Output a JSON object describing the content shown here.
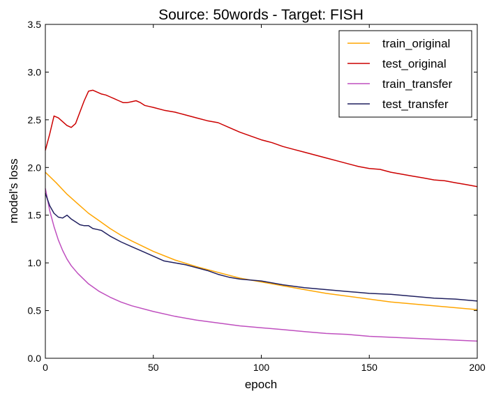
{
  "chart_data": {
    "type": "line",
    "title": "Source: 50words - Target: FISH",
    "xlabel": "epoch",
    "ylabel": "model's loss",
    "xlim": [
      0,
      200
    ],
    "ylim": [
      0,
      3.5
    ],
    "xticks": [
      0,
      50,
      100,
      150,
      200
    ],
    "yticks": [
      0.0,
      0.5,
      1.0,
      1.5,
      2.0,
      2.5,
      3.0,
      3.5
    ],
    "xtick_labels": [
      "0",
      "50",
      "100",
      "150",
      "200"
    ],
    "ytick_labels": [
      "0.0",
      "0.5",
      "1.0",
      "1.5",
      "2.0",
      "2.5",
      "3.0",
      "3.5"
    ],
    "grid": false,
    "legend_position": "top-right",
    "series": [
      {
        "name": "train_original",
        "color": "#FFA500",
        "x": [
          0,
          5,
          10,
          15,
          20,
          25,
          30,
          35,
          40,
          50,
          60,
          70,
          80,
          90,
          100,
          110,
          120,
          130,
          140,
          150,
          160,
          170,
          180,
          190,
          200
        ],
        "y": [
          1.95,
          1.84,
          1.72,
          1.62,
          1.52,
          1.44,
          1.36,
          1.29,
          1.23,
          1.12,
          1.03,
          0.96,
          0.9,
          0.84,
          0.8,
          0.76,
          0.72,
          0.68,
          0.65,
          0.62,
          0.59,
          0.57,
          0.55,
          0.53,
          0.51
        ]
      },
      {
        "name": "test_original",
        "color": "#CC0000",
        "x": [
          0,
          2,
          4,
          6,
          8,
          10,
          12,
          14,
          16,
          18,
          20,
          22,
          24,
          26,
          28,
          30,
          32,
          34,
          36,
          38,
          40,
          42,
          44,
          46,
          48,
          50,
          55,
          60,
          65,
          70,
          75,
          80,
          85,
          90,
          95,
          100,
          105,
          110,
          115,
          120,
          125,
          130,
          135,
          140,
          145,
          150,
          155,
          160,
          165,
          170,
          175,
          180,
          185,
          190,
          195,
          200
        ],
        "y": [
          2.18,
          2.35,
          2.54,
          2.52,
          2.48,
          2.44,
          2.42,
          2.46,
          2.58,
          2.7,
          2.8,
          2.81,
          2.79,
          2.77,
          2.76,
          2.74,
          2.72,
          2.7,
          2.68,
          2.68,
          2.69,
          2.7,
          2.68,
          2.65,
          2.64,
          2.63,
          2.6,
          2.58,
          2.55,
          2.52,
          2.49,
          2.47,
          2.42,
          2.37,
          2.33,
          2.29,
          2.26,
          2.22,
          2.19,
          2.16,
          2.13,
          2.1,
          2.07,
          2.04,
          2.01,
          1.99,
          1.98,
          1.95,
          1.93,
          1.91,
          1.89,
          1.87,
          1.86,
          1.84,
          1.82,
          1.8
        ]
      },
      {
        "name": "train_transfer",
        "color": "#BF4FBF",
        "x": [
          0,
          2,
          4,
          6,
          8,
          10,
          12,
          15,
          20,
          25,
          30,
          35,
          40,
          50,
          60,
          70,
          80,
          90,
          100,
          110,
          120,
          130,
          140,
          150,
          160,
          170,
          180,
          190,
          200
        ],
        "y": [
          1.78,
          1.55,
          1.38,
          1.24,
          1.13,
          1.04,
          0.97,
          0.89,
          0.78,
          0.7,
          0.64,
          0.59,
          0.55,
          0.49,
          0.44,
          0.4,
          0.37,
          0.34,
          0.32,
          0.3,
          0.28,
          0.26,
          0.25,
          0.23,
          0.22,
          0.21,
          0.2,
          0.19,
          0.18
        ]
      },
      {
        "name": "test_transfer",
        "color": "#1F1F5F",
        "x": [
          0,
          2,
          4,
          6,
          8,
          10,
          12,
          14,
          16,
          18,
          20,
          22,
          24,
          26,
          28,
          30,
          35,
          40,
          45,
          50,
          55,
          60,
          65,
          70,
          75,
          80,
          85,
          90,
          95,
          100,
          110,
          120,
          130,
          140,
          150,
          160,
          170,
          180,
          190,
          200
        ],
        "y": [
          1.73,
          1.6,
          1.52,
          1.48,
          1.47,
          1.5,
          1.46,
          1.43,
          1.4,
          1.39,
          1.39,
          1.36,
          1.35,
          1.34,
          1.31,
          1.28,
          1.22,
          1.17,
          1.12,
          1.07,
          1.02,
          1.0,
          0.98,
          0.95,
          0.92,
          0.88,
          0.85,
          0.83,
          0.82,
          0.81,
          0.77,
          0.74,
          0.72,
          0.7,
          0.68,
          0.67,
          0.65,
          0.63,
          0.62,
          0.6
        ]
      }
    ]
  }
}
